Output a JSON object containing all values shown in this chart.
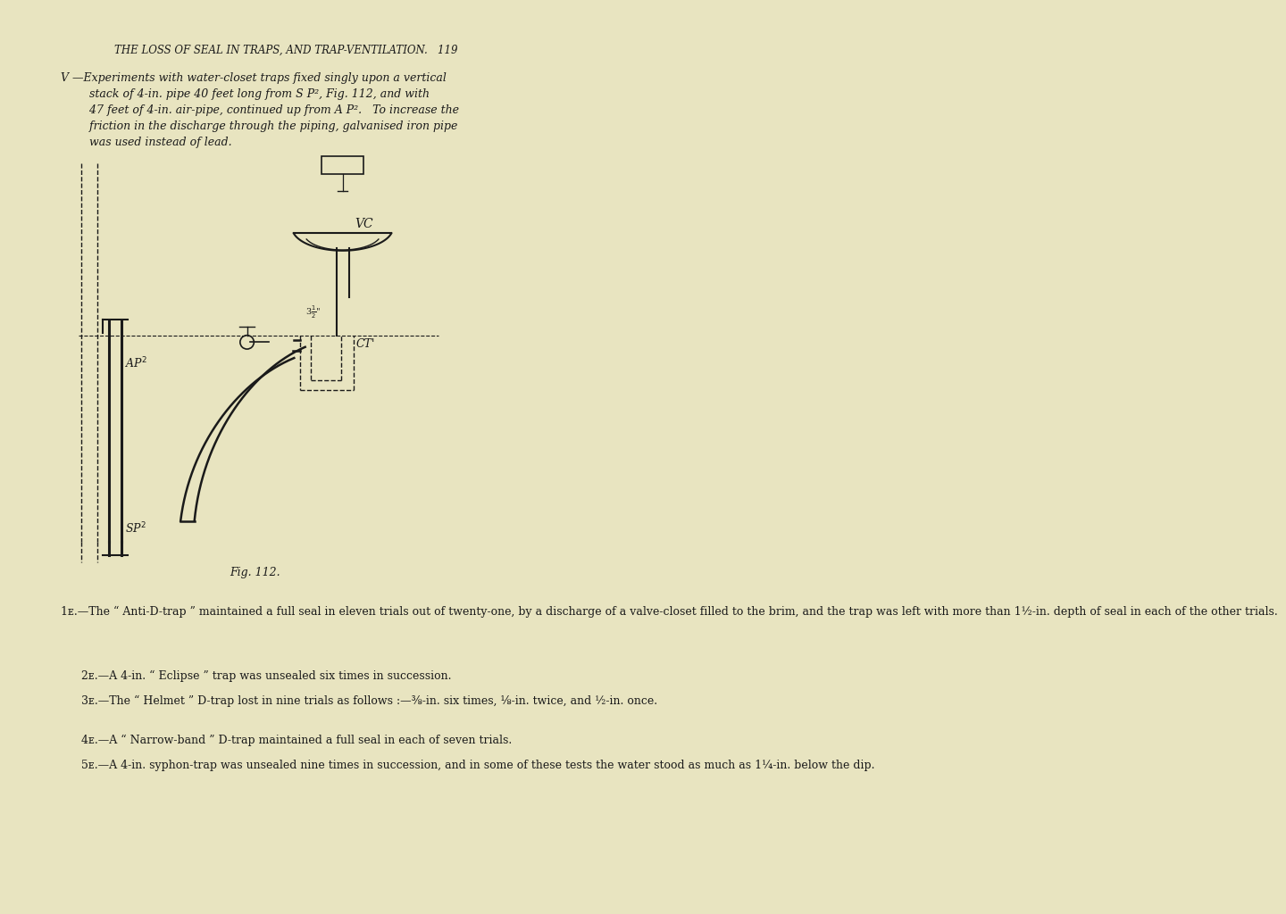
{
  "bg_color": "#e8e4c0",
  "page_width": 8.0,
  "page_height": 13.04,
  "header_text": "THE LOSS OF SEAL IN TRAPS, AND TRAP-VENTILATION.   119",
  "fig_caption": "Fig. 112.",
  "body_paragraphs": [
    "1ᴇ.—The “ Anti-D-trap ” maintained a full seal in eleven trials out of twenty-one, by a discharge of a valve-closet filled to the brim, and the trap was left with more than 1½-in. depth of seal in each of the other trials.",
    "2ᴇ.—A 4-in. “ Eclipse ” trap was unsealed six times in succession.",
    "3ᴇ.—The “ Helmet ” D-trap lost in nine trials as follows :—⅜-in. six times, ⅛-in. twice, and ½-in. once.",
    "4ᴇ.—A “ Narrow-band ” D-trap maintained a full seal in each of seven trials.",
    "5ᴇ.—A 4-in. syphon-trap was unsealed nine times in succession, and in some of these tests the water stood as much as 1¼-in. below the dip."
  ]
}
